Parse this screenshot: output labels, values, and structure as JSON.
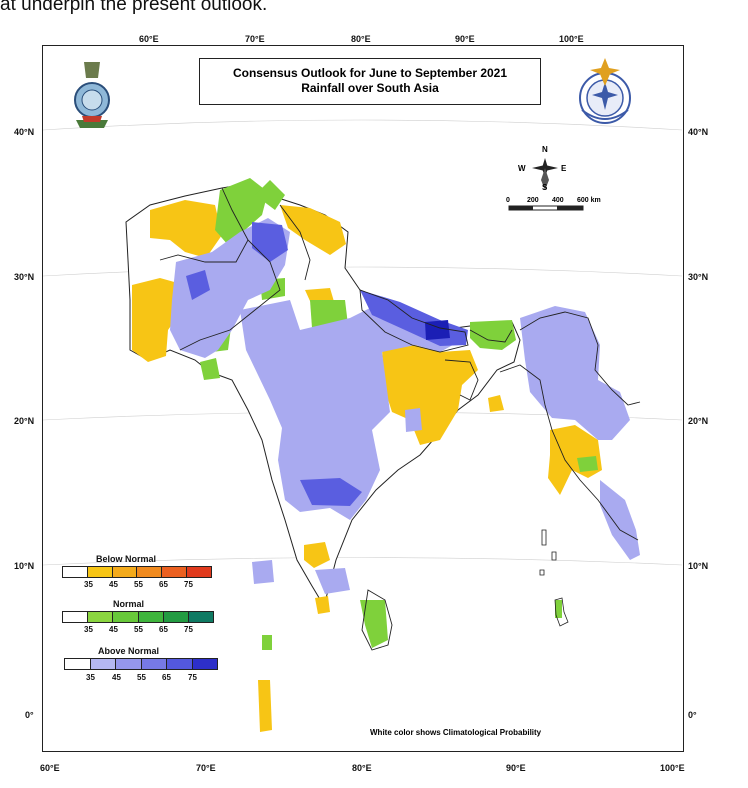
{
  "header_text": "at underpin the present outlook.",
  "title": {
    "line1": "Consensus Outlook for June to September 2021",
    "line2": "Rainfall over South Asia"
  },
  "axes": {
    "top_lon": [
      "60°E",
      "70°E",
      "80°E",
      "90°E",
      "100°E"
    ],
    "bottom_lon": [
      "60°E",
      "70°E",
      "80°E",
      "90°E",
      "100°E"
    ],
    "left_lat": [
      "40°N",
      "30°N",
      "20°N",
      "10°N",
      "0°"
    ],
    "right_lat": [
      "40°N",
      "30°N",
      "20°N",
      "10°N",
      "0°"
    ]
  },
  "compass": {
    "n": "N",
    "s": "S",
    "e": "E",
    "w": "W"
  },
  "scale": {
    "ticks": [
      "0",
      "200",
      "400",
      "600 km"
    ]
  },
  "legend": [
    {
      "title": "Below Normal",
      "colors": [
        "#ffffff",
        "#f7c515",
        "#f3aa1b",
        "#f08a1e",
        "#eb6020",
        "#e03a1d"
      ],
      "values": [
        "35",
        "45",
        "55",
        "65",
        "75"
      ]
    },
    {
      "title": "Normal",
      "colors": [
        "#ffffff",
        "#8bd640",
        "#68c83a",
        "#3fb53d",
        "#239b42",
        "#0f7a63"
      ],
      "values": [
        "35",
        "45",
        "55",
        "65",
        "75"
      ]
    },
    {
      "title": "Above Normal",
      "colors": [
        "#ffffff",
        "#b5b8f2",
        "#9597ec",
        "#7679e6",
        "#5358de",
        "#2d2fc9"
      ],
      "values": [
        "35",
        "45",
        "55",
        "65",
        "75"
      ]
    }
  ],
  "note": "White color shows Climatological Probability",
  "colors": {
    "below": "#f7c515",
    "normal": "#7fd13b",
    "above": "#a9aaf0",
    "above_dark": "#5a5ee0",
    "above_darkest": "#1b1fb5",
    "border": "#222222"
  }
}
